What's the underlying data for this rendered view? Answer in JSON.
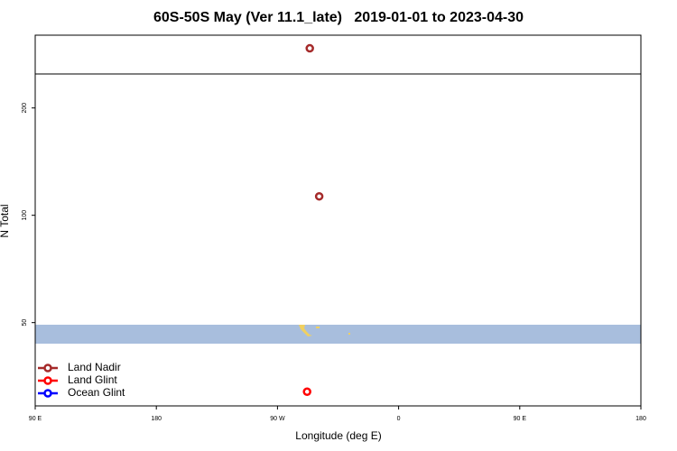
{
  "chart_data": {
    "type": "scatter",
    "title": "60S-50S May (Ver 11.1_late)   2019-01-01 to 2023-04-30",
    "xlabel": "Longitude (deg E)",
    "ylabel": "N Total",
    "xlim": [
      90,
      540
    ],
    "xticks": [
      {
        "value": 90,
        "label": "90 E"
      },
      {
        "value": 180,
        "label": "180"
      },
      {
        "value": 270,
        "label": "90 W"
      },
      {
        "value": 360,
        "label": "0"
      },
      {
        "value": 450,
        "label": "90 E"
      },
      {
        "value": 540,
        "label": "180"
      }
    ],
    "ylim": [
      29.2,
      320
    ],
    "log_y": true,
    "yticks": [
      50,
      100,
      200
    ],
    "legend": "lower left",
    "series": [
      {
        "name": "Land Nadir",
        "color": "#a52a2a",
        "x": [
          294,
          301
        ],
        "values": [
          294,
          113
        ]
      },
      {
        "name": "Land Glint",
        "color": "#ff0000",
        "x": [
          292
        ],
        "values": [
          32
        ]
      },
      {
        "name": "Ocean Glint",
        "color": "#0000ff",
        "x": [],
        "values": []
      }
    ]
  }
}
